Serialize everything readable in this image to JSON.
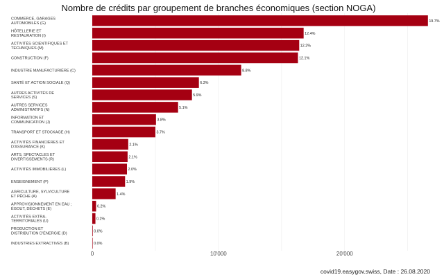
{
  "chart_data": {
    "type": "bar",
    "orientation": "horizontal",
    "title": "Nombre de crédits par groupement de branches économiques (section NOGA)",
    "footer": "covid19.easygov.swiss, Date : 26.08.2020",
    "bar_color": "#a50012",
    "xlim": [
      0,
      26500
    ],
    "xticks": [
      0,
      10000,
      20000
    ],
    "xtick_labels": [
      "0",
      "10'000",
      "20'000"
    ],
    "grid": true,
    "categories": [
      [
        "COMMERCE, GARAGES",
        "AUTOMOBILES (G)"
      ],
      [
        "HÔTELLERIE ET",
        "RESTAURATION (I)"
      ],
      [
        "ACTIVITÉS SCIENTIFIQUES ET",
        "TECHNIQUES (M)"
      ],
      [
        "CONSTRUCTION (F)"
      ],
      [
        "INDUSTRIE MANUFACTURIÈRE (C)"
      ],
      [
        "SANTÉ ET ACTION SOCIALE (Q)"
      ],
      [
        "AUTRES ACTIVITÉS DE",
        "SERVICES (S)"
      ],
      [
        "AUTRES SERVICES",
        "ADMINISTRATIFS (N)"
      ],
      [
        "INFORMATION ET",
        "COMMUNICATION (J)"
      ],
      [
        "TRANSPORT ET STOCKAGE (H)"
      ],
      [
        "ACTIVITÉS FINANCIÈRES ET",
        "D'ASSURANCE (K)"
      ],
      [
        "ARTS, SPECTACLES ET",
        "DIVERTISSEMENTS (R)"
      ],
      [
        "ACTIVITÉS IMMOBILIÈRES (L)"
      ],
      [
        "ENSEIGNEMENT (P)"
      ],
      [
        "AGRICULTURE, SYLVICULTURE",
        "ET PÊCHE (A)"
      ],
      [
        "APPROVISIONNEMENT EN EAU ;",
        "ÉGOUT, DÉCHETS (E)"
      ],
      [
        "ACTIVITÉS EXTRA-",
        "TERRITORIALES (U)"
      ],
      [
        "PRODUCTION ET",
        "DISTRIBUTION D'ÉNERGIE (D)"
      ],
      [
        "INDUSTRIES EXTRACTIVES (B)"
      ]
    ],
    "values": [
      26600,
      16750,
      16400,
      16300,
      11800,
      8450,
      7900,
      6800,
      5050,
      5000,
      2850,
      2800,
      2750,
      2600,
      1850,
      300,
      250,
      40,
      20
    ],
    "labels": [
      "19.7%",
      "12.4%",
      "12.2%",
      "12.1%",
      "8.8%",
      "6.3%",
      "5.9%",
      "5.1%",
      "3.8%",
      "3.7%",
      "2.1%",
      "2.1%",
      "2.0%",
      "1.9%",
      "1.4%",
      "0.2%",
      "0.2%",
      "0.0%",
      "0.0%"
    ]
  }
}
